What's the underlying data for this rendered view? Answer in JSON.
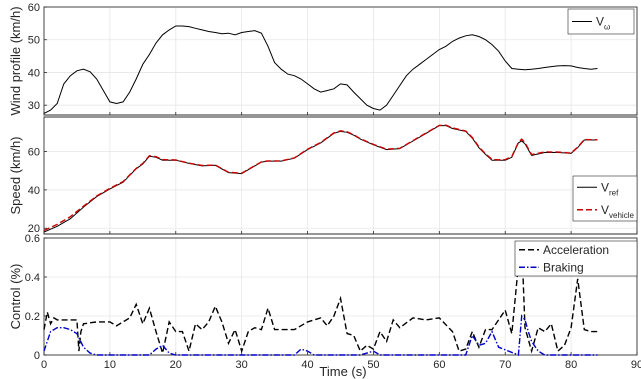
{
  "chart_data": [
    {
      "type": "line",
      "xlabel": "",
      "ylabel": "Wind profile (km/h)",
      "xlim": [
        0,
        90
      ],
      "ylim": [
        27,
        60
      ],
      "x_ticks": [
        "0",
        "10",
        "20",
        "30",
        "40",
        "50",
        "60",
        "70",
        "80",
        "90"
      ],
      "y_ticks": [
        "30",
        "40",
        "50",
        "60"
      ],
      "y_tick_values": [
        30,
        40,
        50,
        60
      ],
      "grid": true,
      "legend_placement": "top-right",
      "series": [
        {
          "name": "V",
          "name_sub": "ω",
          "color": "#000000",
          "style": "solid",
          "x": [
            0,
            1,
            2,
            3,
            4,
            5,
            6,
            7,
            8,
            9,
            10,
            11,
            12,
            13,
            14,
            15,
            16,
            17,
            18,
            19,
            20,
            21,
            22,
            23,
            24,
            25,
            26,
            27,
            28,
            29,
            30,
            31,
            32,
            33,
            34,
            35,
            36,
            37,
            38,
            39,
            40,
            41,
            42,
            43,
            44,
            45,
            46,
            47,
            48,
            49,
            50,
            51,
            52,
            53,
            54,
            55,
            56,
            57,
            58,
            59,
            60,
            61,
            62,
            63,
            64,
            65,
            66,
            67,
            68,
            69,
            70,
            71,
            72,
            73,
            74,
            75,
            76,
            77,
            78,
            79,
            80,
            81,
            82,
            83,
            84
          ],
          "y": [
            27.5,
            28.5,
            30.5,
            36.5,
            39.0,
            40.5,
            41.0,
            40.2,
            38.0,
            34.5,
            31.0,
            30.5,
            31.0,
            34.0,
            38.0,
            42.5,
            45.5,
            49.0,
            51.5,
            53.0,
            54.2,
            54.2,
            54.0,
            53.5,
            53.0,
            52.5,
            52.2,
            51.8,
            52.0,
            51.5,
            52.2,
            52.5,
            52.8,
            52.0,
            48.0,
            43.0,
            41.0,
            39.5,
            39.0,
            38.0,
            36.5,
            35.0,
            34.0,
            34.5,
            35.0,
            36.5,
            36.2,
            34.0,
            32.0,
            30.0,
            29.0,
            28.5,
            30.0,
            33.0,
            36.0,
            39.0,
            41.0,
            42.5,
            44.0,
            45.5,
            47.0,
            48.0,
            49.5,
            50.5,
            51.2,
            51.5,
            51.0,
            50.0,
            48.5,
            46.5,
            43.5,
            41.2,
            41.0,
            40.8,
            41.0,
            41.2,
            41.5,
            41.8,
            42.0,
            42.1,
            42.0,
            41.5,
            41.2,
            41.0,
            41.2
          ]
        }
      ]
    },
    {
      "type": "line",
      "xlabel": "",
      "ylabel": "Speed (km/h)",
      "xlim": [
        0,
        90
      ],
      "ylim": [
        17,
        78
      ],
      "x_ticks": [
        "0",
        "10",
        "20",
        "30",
        "40",
        "50",
        "60",
        "70",
        "80",
        "90"
      ],
      "y_ticks": [
        "20",
        "40",
        "60"
      ],
      "y_tick_values": [
        20,
        40,
        60
      ],
      "grid": true,
      "legend_placement": "lower-right",
      "series": [
        {
          "name": "V",
          "name_sub": "ref",
          "color": "#000000",
          "style": "solid",
          "x": [
            0,
            2,
            4,
            6,
            8,
            10,
            12,
            14,
            15,
            16,
            17,
            18,
            19,
            20,
            22,
            24,
            26,
            28,
            30,
            32,
            33,
            34,
            36,
            38,
            40,
            42,
            44,
            45,
            46,
            47,
            48,
            50,
            52,
            54,
            56,
            58,
            60,
            61,
            62,
            64,
            65,
            66,
            67,
            68,
            69,
            70,
            71,
            72,
            72.5,
            73,
            74,
            76,
            78,
            80,
            81,
            82,
            84
          ],
          "y": [
            18,
            21,
            25,
            31,
            36.5,
            40.5,
            44,
            51,
            53.5,
            57.5,
            57,
            55.5,
            55.5,
            55.5,
            53.8,
            52.5,
            52.8,
            49,
            48.5,
            52.5,
            54.5,
            55,
            55,
            56.5,
            61,
            64.5,
            69.5,
            70.5,
            70,
            68.5,
            66.5,
            63.5,
            61,
            61.5,
            65.5,
            69.5,
            73.5,
            73.5,
            72,
            70.5,
            67,
            62,
            58.5,
            55.5,
            55.5,
            55.5,
            57,
            64.5,
            65.5,
            64,
            58,
            59.5,
            59.5,
            59,
            62,
            66,
            66
          ]
        },
        {
          "name": "V",
          "name_sub": "vehicle",
          "color": "#cc0000",
          "style": "dashed",
          "x": [
            0,
            2,
            4,
            6,
            8,
            10,
            12,
            14,
            15,
            16,
            17,
            18,
            19,
            20,
            22,
            24,
            26,
            28,
            30,
            32,
            33,
            34,
            36,
            38,
            40,
            42,
            44,
            45,
            46,
            47,
            48,
            50,
            52,
            54,
            56,
            58,
            60,
            61,
            62,
            64,
            65,
            66,
            67,
            68,
            69,
            70,
            71,
            72,
            72.5,
            73,
            74,
            76,
            78,
            80,
            81,
            82,
            84
          ],
          "y": [
            18.8,
            22,
            26,
            31.5,
            36.8,
            40.8,
            44.3,
            51.2,
            53.8,
            57.8,
            57.3,
            55.8,
            55.7,
            55.6,
            53.9,
            52.7,
            52.9,
            49.2,
            48.7,
            52.6,
            54.6,
            55.1,
            55.1,
            56.7,
            61.2,
            64.7,
            69.7,
            70.8,
            70.3,
            68.7,
            66.7,
            63.7,
            61.2,
            61.7,
            65.7,
            69.7,
            73.6,
            73.7,
            72.3,
            70.7,
            67.3,
            62.4,
            58.8,
            55.9,
            55.7,
            55.8,
            57.4,
            64.8,
            66.5,
            64.6,
            58.4,
            59.8,
            59.7,
            59.2,
            62.3,
            66.2,
            66.1
          ]
        }
      ]
    },
    {
      "type": "line",
      "xlabel": "Time (s)",
      "ylabel": "Control (%)",
      "xlim": [
        0,
        90
      ],
      "ylim": [
        0,
        0.6
      ],
      "x_ticks": [
        "0",
        "10",
        "20",
        "30",
        "40",
        "50",
        "60",
        "70",
        "80",
        "90"
      ],
      "y_ticks": [
        "0",
        "0.2",
        "0.4",
        "0.6"
      ],
      "y_tick_values": [
        0,
        0.2,
        0.4,
        0.6
      ],
      "grid": true,
      "legend_placement": "top-right",
      "series": [
        {
          "name": "Acceleration",
          "color": "#000000",
          "style": "dashed",
          "x": [
            0,
            0.5,
            1,
            1.5,
            2,
            3,
            4,
            5,
            5.3,
            5.6,
            6,
            8,
            10,
            11,
            12,
            13,
            14,
            15,
            16,
            17,
            18,
            19,
            20,
            21,
            22,
            23,
            24,
            25,
            26,
            27,
            28,
            29,
            30,
            31,
            32,
            33,
            34,
            35,
            36,
            38,
            40,
            42,
            43,
            44,
            45,
            46,
            47,
            48,
            49,
            50,
            51,
            52,
            53,
            54,
            56,
            58,
            60,
            62,
            63,
            64,
            65,
            66,
            67,
            68,
            69,
            70,
            71,
            72,
            72.5,
            73,
            74,
            75,
            76,
            77,
            78,
            79,
            80,
            81,
            82,
            83,
            84
          ],
          "y": [
            0.13,
            0.22,
            0.16,
            0.19,
            0.18,
            0.18,
            0.18,
            0.18,
            0.02,
            0.12,
            0.16,
            0.17,
            0.17,
            0.15,
            0.17,
            0.19,
            0.26,
            0.16,
            0.24,
            0.12,
            0.01,
            0.17,
            0.12,
            0.12,
            0.02,
            0.16,
            0.13,
            0.17,
            0.25,
            0.17,
            0.06,
            0.13,
            0.02,
            0.12,
            0.14,
            0.13,
            0.24,
            0.13,
            0.13,
            0.13,
            0.17,
            0.19,
            0.15,
            0.2,
            0.29,
            0.11,
            0.1,
            0.02,
            0.05,
            0.03,
            0.12,
            0.07,
            0.18,
            0.14,
            0.19,
            0.18,
            0.19,
            0.12,
            0.02,
            0.03,
            0.12,
            0.04,
            0.13,
            0.13,
            0.18,
            0.23,
            0.11,
            0.46,
            0.58,
            0.14,
            0.02,
            0.14,
            0.12,
            0.16,
            0.02,
            0.05,
            0.14,
            0.39,
            0.13,
            0.12,
            0.12
          ]
        },
        {
          "name": "Braking",
          "color": "#0000cc",
          "style": "dashdot",
          "x": [
            0,
            1,
            2,
            3,
            4,
            5,
            6,
            7,
            8,
            10,
            16,
            17,
            18,
            19,
            20,
            30,
            38,
            39,
            40,
            41,
            48,
            49,
            50,
            51,
            64,
            65,
            66,
            67,
            68,
            69,
            72,
            72.5,
            73,
            73.5,
            74,
            75,
            76,
            84
          ],
          "y": [
            0.02,
            0.12,
            0.14,
            0.14,
            0.13,
            0.11,
            0.04,
            0.01,
            0,
            0,
            0,
            0.03,
            0.05,
            0.01,
            0,
            0,
            0,
            0.03,
            0.02,
            0,
            0,
            0.01,
            0.02,
            0,
            0,
            0.1,
            0.05,
            0.06,
            0.12,
            0.04,
            0,
            0.2,
            0.18,
            0.12,
            0.07,
            0.02,
            0,
            0
          ]
        }
      ]
    }
  ]
}
